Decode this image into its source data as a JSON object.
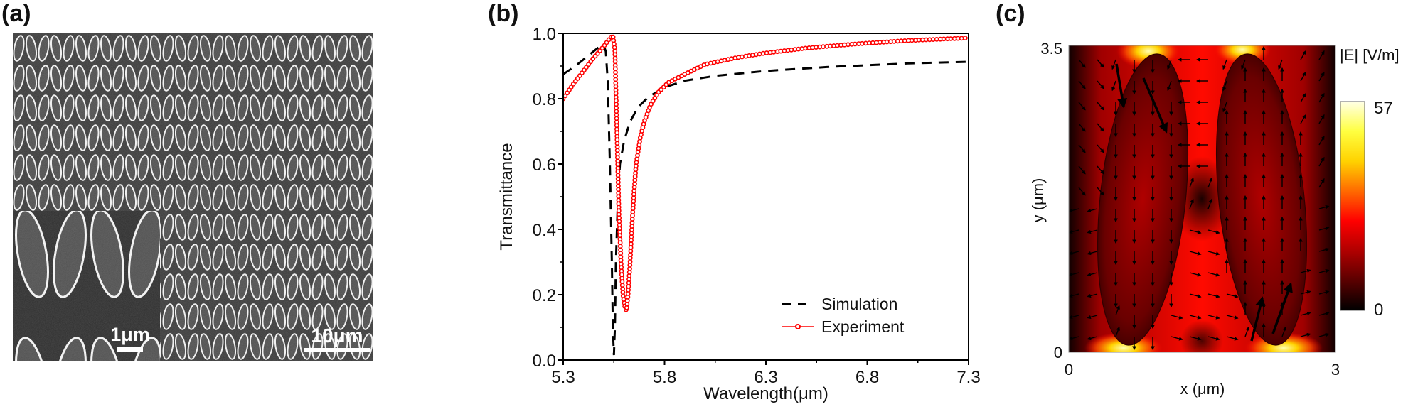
{
  "panels": {
    "a": {
      "label": "(a)",
      "type": "SEM image",
      "description": "Array of paired tilted elliptical resonators",
      "main_scale_bar": "10μm",
      "inset_scale_bar": "1μm"
    },
    "b": {
      "label": "(b)"
    },
    "c": {
      "label": "(c)",
      "xlabel": "x (μm)",
      "ylabel": "y (μm)",
      "x_ticks": [
        "0",
        "3"
      ],
      "y_ticks": [
        "0",
        "3.5"
      ],
      "x_range": [
        0,
        3
      ],
      "y_range": [
        0,
        3.5
      ],
      "colorbar": {
        "title": "|E| [V/m]",
        "min_label": "0",
        "max_label": "57",
        "range": [
          0,
          57
        ],
        "colors": [
          "#000000",
          "#5a0000",
          "#b00000",
          "#ff0000",
          "#ff6a00",
          "#ffd200",
          "#ffff40",
          "#ffffe6"
        ]
      }
    }
  },
  "chart_data": [
    {
      "type": "line",
      "panel": "(b)",
      "title": "",
      "xlabel": "Wavelength(μm)",
      "ylabel": "Transmittance",
      "xlim": [
        5.3,
        7.3
      ],
      "ylim": [
        0.0,
        1.0
      ],
      "x_ticks": [
        "5.3",
        "5.8",
        "6.3",
        "6.8",
        "7.3"
      ],
      "y_ticks": [
        "0.0",
        "0.2",
        "0.4",
        "0.6",
        "0.8",
        "1.0"
      ],
      "grid": false,
      "legend_position": "bottom-right",
      "series": [
        {
          "name": "Simulation",
          "style": "dashed",
          "color": "#000000",
          "x": [
            5.3,
            5.36,
            5.42,
            5.47,
            5.5,
            5.51,
            5.52,
            5.53,
            5.54,
            5.545,
            5.55,
            5.555,
            5.56,
            5.57,
            5.58,
            5.6,
            5.63,
            5.67,
            5.72,
            5.8,
            5.9,
            6.05,
            6.3,
            6.6,
            7.0,
            7.3
          ],
          "y": [
            0.875,
            0.9,
            0.93,
            0.955,
            0.963,
            0.945,
            0.85,
            0.6,
            0.3,
            0.1,
            0.015,
            0.1,
            0.3,
            0.5,
            0.6,
            0.67,
            0.73,
            0.775,
            0.805,
            0.835,
            0.855,
            0.87,
            0.885,
            0.897,
            0.908,
            0.913
          ]
        },
        {
          "name": "Experiment",
          "style": "line-with-circle-markers",
          "color": "#ff0000",
          "x": [
            5.3,
            5.35,
            5.4,
            5.45,
            5.5,
            5.53,
            5.545,
            5.555,
            5.565,
            5.575,
            5.585,
            5.595,
            5.605,
            5.612,
            5.62,
            5.63,
            5.64,
            5.65,
            5.66,
            5.68,
            5.7,
            5.73,
            5.77,
            5.82,
            5.9,
            6.0,
            6.15,
            6.3,
            6.5,
            6.75,
            7.0,
            7.3
          ],
          "y": [
            0.8,
            0.845,
            0.885,
            0.925,
            0.96,
            0.985,
            0.993,
            0.95,
            0.7,
            0.45,
            0.3,
            0.2,
            0.16,
            0.152,
            0.2,
            0.3,
            0.42,
            0.52,
            0.6,
            0.68,
            0.73,
            0.78,
            0.82,
            0.85,
            0.875,
            0.905,
            0.925,
            0.94,
            0.955,
            0.968,
            0.978,
            0.986
          ]
        }
      ]
    }
  ]
}
